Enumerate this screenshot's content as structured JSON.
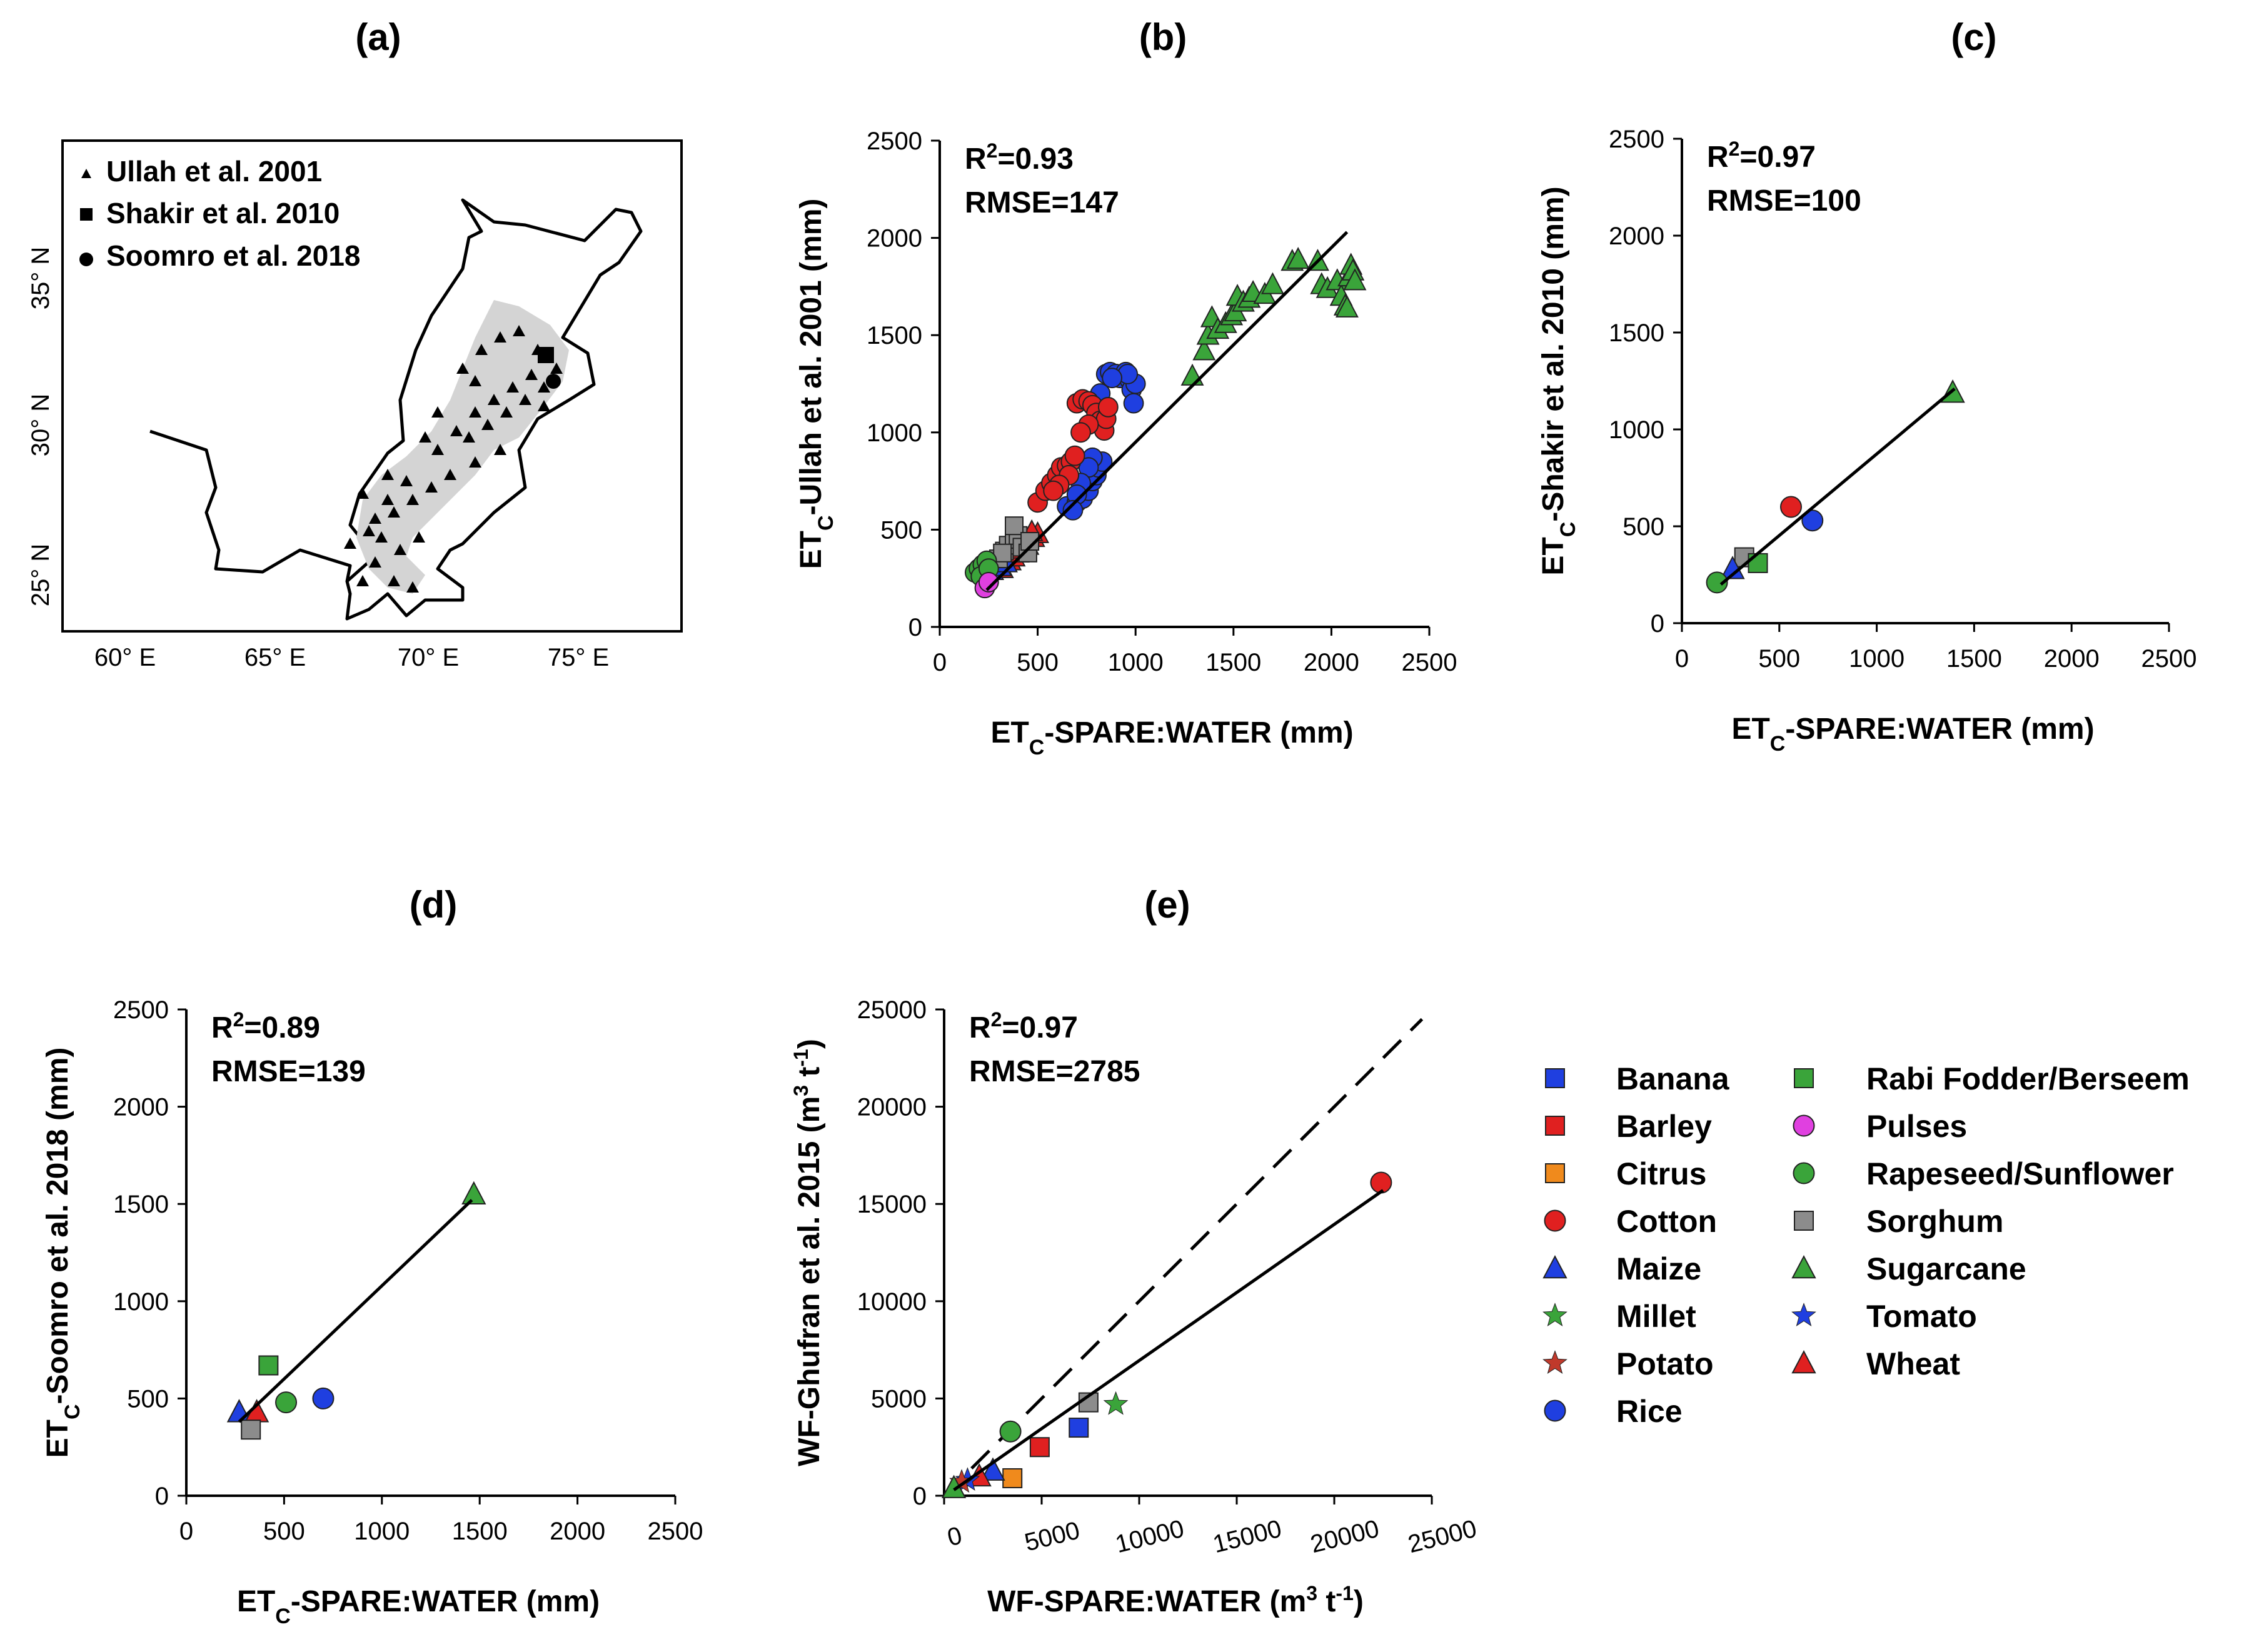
{
  "panel_labels": [
    "(a)",
    "(b)",
    "(c)",
    "(d)",
    "(e)"
  ],
  "colors": {
    "Banana": "#1f3fe0",
    "Barley": "#e02020",
    "Citrus": "#f08a1c",
    "Cotton": "#e02020",
    "Maize": "#1f3fe0",
    "Millet": "#3aa43a",
    "Potato": "#c0392b",
    "Rice": "#1f3fe0",
    "Rabi Fodder/Berseem": "#3aa43a",
    "Pulses": "#e040e0",
    "Rapeseed/Sunflower": "#3aa43a",
    "Sorghum": "#8c8c8c",
    "Sugarcane": "#3aa43a",
    "Tomato": "#1f3fe0",
    "Wheat": "#e02020",
    "map_gray": "#d4d4d4"
  },
  "map": {
    "legend": [
      "Ullah et al. 2001",
      "Shakir et al. 2010",
      "Soomro et al. 2018"
    ],
    "x_ticks": [
      "60° E",
      "65° E",
      "70° E",
      "75° E"
    ],
    "y_ticks": [
      "35° N",
      "30° N",
      "25° N"
    ]
  },
  "legend": {
    "col1": [
      {
        "label": "Banana",
        "marker": "square"
      },
      {
        "label": "Barley",
        "marker": "square"
      },
      {
        "label": "Citrus",
        "marker": "square"
      },
      {
        "label": "Cotton",
        "marker": "circle"
      },
      {
        "label": "Maize",
        "marker": "triangle"
      },
      {
        "label": "Millet",
        "marker": "star"
      },
      {
        "label": "Potato",
        "marker": "star"
      },
      {
        "label": "Rice",
        "marker": "circle"
      }
    ],
    "col2": [
      {
        "label": "Rabi Fodder/Berseem",
        "marker": "square"
      },
      {
        "label": "Pulses",
        "marker": "circle"
      },
      {
        "label": "Rapeseed/Sunflower",
        "marker": "circle"
      },
      {
        "label": "Sorghum",
        "marker": "square"
      },
      {
        "label": "Sugarcane",
        "marker": "triangle"
      },
      {
        "label": "Tomato",
        "marker": "star"
      },
      {
        "label": "Wheat",
        "marker": "triangle"
      }
    ]
  },
  "chart_data": [
    {
      "id": "b",
      "type": "scatter",
      "xlabel": "ETc-SPARE:WATER (mm)",
      "ylabel": "ETc-Ullah et al. 2001 (mm)",
      "xlim": [
        0,
        2500
      ],
      "ylim": [
        0,
        2500
      ],
      "xticks": [
        "0",
        "500",
        "1000",
        "1500",
        "2000",
        "2500"
      ],
      "yticks": [
        "0",
        "500",
        "1000",
        "1500",
        "2000",
        "2500"
      ],
      "stats": {
        "r2": "R²=0.93",
        "rmse": "RMSE=147"
      },
      "fit_line": [
        [
          240,
          190
        ],
        [
          2080,
          2030
        ]
      ],
      "series": [
        {
          "name": "Sugarcane",
          "marker": "triangle",
          "points": [
            [
              1290,
              1290
            ],
            [
              1350,
              1420
            ],
            [
              1370,
              1500
            ],
            [
              1390,
              1590
            ],
            [
              1420,
              1530
            ],
            [
              1460,
              1560
            ],
            [
              1490,
              1600
            ],
            [
              1510,
              1620
            ],
            [
              1520,
              1700
            ],
            [
              1550,
              1670
            ],
            [
              1580,
              1690
            ],
            [
              1600,
              1720
            ],
            [
              1660,
              1710
            ],
            [
              1700,
              1760
            ],
            [
              1800,
              1880
            ],
            [
              1830,
              1890
            ],
            [
              1930,
              1880
            ],
            [
              1950,
              1760
            ],
            [
              1980,
              1740
            ],
            [
              2030,
              1780
            ],
            [
              2050,
              1700
            ],
            [
              2070,
              1650
            ],
            [
              2080,
              1640
            ],
            [
              2090,
              1800
            ],
            [
              2100,
              1860
            ],
            [
              2110,
              1830
            ],
            [
              2120,
              1780
            ]
          ]
        },
        {
          "name": "Rice",
          "marker": "circle",
          "points": [
            [
              650,
              620
            ],
            [
              700,
              640
            ],
            [
              730,
              660
            ],
            [
              760,
              700
            ],
            [
              780,
              750
            ],
            [
              800,
              780
            ],
            [
              810,
              820
            ],
            [
              830,
              850
            ],
            [
              850,
              1300
            ],
            [
              870,
              1310
            ],
            [
              900,
              1300
            ],
            [
              920,
              1280
            ],
            [
              950,
              1310
            ],
            [
              970,
              1270
            ],
            [
              980,
              1220
            ],
            [
              990,
              1150
            ],
            [
              1000,
              1250
            ],
            [
              960,
              1300
            ],
            [
              880,
              1280
            ],
            [
              820,
              1200
            ],
            [
              780,
              870
            ],
            [
              760,
              820
            ],
            [
              720,
              740
            ],
            [
              700,
              680
            ],
            [
              680,
              600
            ]
          ]
        },
        {
          "name": "Cotton",
          "marker": "circle",
          "points": [
            [
              500,
              640
            ],
            [
              540,
              700
            ],
            [
              570,
              740
            ],
            [
              600,
              780
            ],
            [
              620,
              820
            ],
            [
              650,
              830
            ],
            [
              670,
              850
            ],
            [
              690,
              880
            ],
            [
              700,
              1150
            ],
            [
              730,
              1170
            ],
            [
              760,
              1160
            ],
            [
              780,
              1140
            ],
            [
              800,
              1100
            ],
            [
              820,
              1060
            ],
            [
              840,
              1010
            ],
            [
              850,
              1070
            ],
            [
              860,
              1130
            ],
            [
              760,
              1040
            ],
            [
              720,
              1000
            ],
            [
              660,
              780
            ],
            [
              610,
              730
            ],
            [
              580,
              700
            ]
          ]
        },
        {
          "name": "Wheat",
          "marker": "triangle",
          "points": [
            [
              320,
              300
            ],
            [
              360,
              340
            ],
            [
              380,
              360
            ],
            [
              400,
              380
            ],
            [
              420,
              400
            ],
            [
              450,
              420
            ],
            [
              480,
              460
            ],
            [
              500,
              480
            ],
            [
              470,
              490
            ],
            [
              430,
              440
            ]
          ]
        },
        {
          "name": "Maize",
          "marker": "triangle",
          "points": [
            [
              270,
              290
            ],
            [
              310,
              310
            ],
            [
              340,
              330
            ]
          ]
        },
        {
          "name": "Sorghum",
          "marker": "square",
          "points": [
            [
              330,
              390
            ],
            [
              350,
              420
            ],
            [
              380,
              450
            ],
            [
              400,
              470
            ],
            [
              420,
              410
            ],
            [
              450,
              380
            ],
            [
              380,
              520
            ],
            [
              300,
              350
            ],
            [
              320,
              380
            ],
            [
              460,
              440
            ]
          ]
        },
        {
          "name": "Rapeseed/Sunflower",
          "marker": "circle",
          "points": [
            [
              180,
              280
            ],
            [
              200,
              300
            ],
            [
              220,
              320
            ],
            [
              240,
              340
            ],
            [
              210,
              260
            ],
            [
              250,
              300
            ]
          ]
        },
        {
          "name": "Pulses",
          "marker": "circle",
          "points": [
            [
              230,
              200
            ],
            [
              250,
              230
            ]
          ]
        }
      ]
    },
    {
      "id": "c",
      "type": "scatter",
      "xlabel": "ETc-SPARE:WATER (mm)",
      "ylabel": "ETc-Shakir et al. 2010 (mm)",
      "xlim": [
        0,
        2500
      ],
      "ylim": [
        0,
        2500
      ],
      "xticks": [
        "0",
        "500",
        "1000",
        "1500",
        "2000",
        "2500"
      ],
      "yticks": [
        "0",
        "500",
        "1000",
        "1500",
        "2000",
        "2500"
      ],
      "stats": {
        "r2": "R²=0.97",
        "rmse": "RMSE=100"
      },
      "fit_line": [
        [
          200,
          200
        ],
        [
          1400,
          1210
        ]
      ],
      "series": [
        {
          "name": "Sugarcane",
          "marker": "triangle",
          "points": [
            [
              1390,
              1190
            ]
          ]
        },
        {
          "name": "Cotton",
          "marker": "circle",
          "points": [
            [
              560,
              600
            ]
          ]
        },
        {
          "name": "Rice",
          "marker": "circle",
          "points": [
            [
              670,
              530
            ]
          ]
        },
        {
          "name": "Sorghum",
          "marker": "square",
          "points": [
            [
              320,
              340
            ]
          ]
        },
        {
          "name": "Rabi Fodder/Berseem",
          "marker": "square",
          "points": [
            [
              390,
              310
            ]
          ]
        },
        {
          "name": "Maize",
          "marker": "triangle",
          "points": [
            [
              260,
              280
            ]
          ]
        },
        {
          "name": "Rapeseed/Sunflower",
          "marker": "circle",
          "points": [
            [
              180,
              210
            ]
          ]
        }
      ]
    },
    {
      "id": "d",
      "type": "scatter",
      "xlabel": "ETc-SPARE:WATER (mm)",
      "ylabel": "ETc-Soomro et al. 2018 (mm)",
      "xlim": [
        0,
        2500
      ],
      "ylim": [
        0,
        2500
      ],
      "xticks": [
        "0",
        "500",
        "1000",
        "1500",
        "2000",
        "2500"
      ],
      "yticks": [
        "0",
        "500",
        "1000",
        "1500",
        "2000",
        "2500"
      ],
      "stats": {
        "r2": "R²=0.89",
        "rmse": "RMSE=139"
      },
      "fit_line": [
        [
          270,
          380
        ],
        [
          1460,
          1520
        ]
      ],
      "series": [
        {
          "name": "Sugarcane",
          "marker": "triangle",
          "points": [
            [
              1470,
              1550
            ]
          ]
        },
        {
          "name": "Rabi Fodder/Berseem",
          "marker": "square",
          "points": [
            [
              420,
              670
            ]
          ]
        },
        {
          "name": "Rapeseed/Sunflower",
          "marker": "circle",
          "points": [
            [
              510,
              480
            ]
          ]
        },
        {
          "name": "Rice",
          "marker": "circle",
          "points": [
            [
              700,
              500
            ]
          ]
        },
        {
          "name": "Maize",
          "marker": "triangle",
          "points": [
            [
              270,
              430
            ]
          ]
        },
        {
          "name": "Wheat",
          "marker": "triangle",
          "points": [
            [
              360,
              430
            ]
          ]
        },
        {
          "name": "Sorghum",
          "marker": "square",
          "points": [
            [
              330,
              340
            ]
          ]
        }
      ]
    },
    {
      "id": "e",
      "type": "scatter",
      "xlabel": "WF-SPARE:WATER (m³ t⁻¹)",
      "ylabel": "WF-Ghufran et al. 2015 (m³ t⁻¹)",
      "xlim": [
        0,
        25000
      ],
      "ylim": [
        0,
        25000
      ],
      "xticks": [
        "0",
        "5000",
        "10000",
        "15000",
        "20000",
        "25000"
      ],
      "yticks": [
        "0",
        "5000",
        "10000",
        "15000",
        "20000",
        "25000"
      ],
      "stats": {
        "r2": "R²=0.97",
        "rmse": "RMSE=2785"
      },
      "fit_line": [
        [
          500,
          300
        ],
        [
          22500,
          15700
        ]
      ],
      "one_to_one_line": [
        [
          0,
          0
        ],
        [
          24500,
          24500
        ]
      ],
      "series": [
        {
          "name": "Cotton",
          "marker": "circle",
          "points": [
            [
              22400,
              16100
            ]
          ]
        },
        {
          "name": "Sorghum",
          "marker": "square",
          "points": [
            [
              7400,
              4800
            ]
          ]
        },
        {
          "name": "Millet",
          "marker": "star",
          "points": [
            [
              8800,
              4700
            ]
          ]
        },
        {
          "name": "Banana",
          "marker": "square",
          "points": [
            [
              6900,
              3500
            ]
          ]
        },
        {
          "name": "Rapeseed/Sunflower",
          "marker": "circle",
          "points": [
            [
              3400,
              3300
            ]
          ]
        },
        {
          "name": "Barley",
          "marker": "square",
          "points": [
            [
              4900,
              2500
            ]
          ]
        },
        {
          "name": "Citrus",
          "marker": "square",
          "points": [
            [
              3500,
              900
            ]
          ]
        },
        {
          "name": "Maize",
          "marker": "triangle",
          "points": [
            [
              2500,
              1300
            ]
          ]
        },
        {
          "name": "Wheat",
          "marker": "triangle",
          "points": [
            [
              1800,
              1000
            ]
          ]
        },
        {
          "name": "Tomato",
          "marker": "star",
          "points": [
            [
              1200,
              800
            ]
          ]
        },
        {
          "name": "Potato",
          "marker": "star",
          "points": [
            [
              900,
              700
            ]
          ]
        },
        {
          "name": "Sugarcane",
          "marker": "triangle",
          "points": [
            [
              500,
              400
            ]
          ]
        }
      ]
    }
  ]
}
